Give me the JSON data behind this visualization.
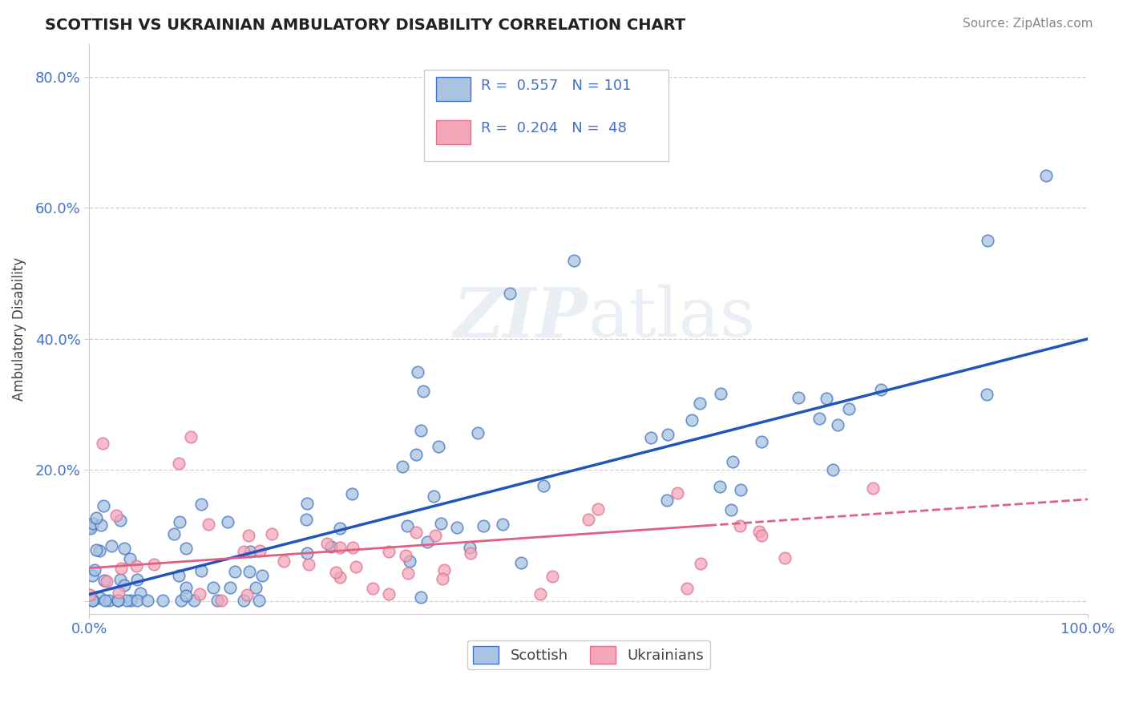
{
  "title": "SCOTTISH VS UKRAINIAN AMBULATORY DISABILITY CORRELATION CHART",
  "source": "Source: ZipAtlas.com",
  "ylabel": "Ambulatory Disability",
  "xlim": [
    0.0,
    1.0
  ],
  "ylim": [
    -0.02,
    0.85
  ],
  "ytick_vals": [
    0.0,
    0.2,
    0.4,
    0.6,
    0.8
  ],
  "ytick_labels": [
    "",
    "20.0%",
    "40.0%",
    "60.0%",
    "80.0%"
  ],
  "xtick_vals": [
    0.0,
    1.0
  ],
  "xtick_labels": [
    "0.0%",
    "100.0%"
  ],
  "legend_r1": "0.557",
  "legend_n1": "101",
  "legend_r2": "0.204",
  "legend_n2": "48",
  "legend_label1": "Scottish",
  "legend_label2": "Ukrainians",
  "scottish_face_color": "#a8c4e0",
  "scottish_edge_color": "#4472c4",
  "ukrainian_face_color": "#f4a7b9",
  "ukrainian_edge_color": "#e07090",
  "scottish_line_color": "#2255bb",
  "ukrainian_line_color": "#e06080",
  "background_color": "#ffffff",
  "grid_color": "#cccccc",
  "title_color": "#222222",
  "source_color": "#888888",
  "tick_color": "#4472c4",
  "ylabel_color": "#444444",
  "watermark_color": "#d0dde8"
}
